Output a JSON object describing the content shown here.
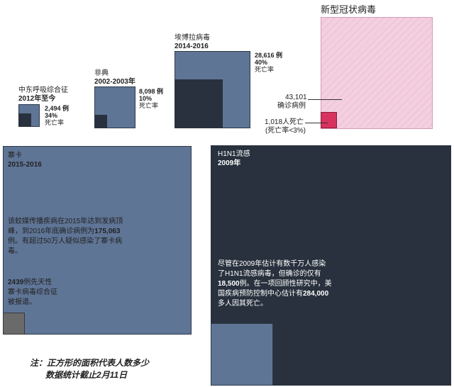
{
  "chart_data": {
    "type": "area-squares",
    "title": "",
    "items": [
      {
        "name": "中东呼吸综合征",
        "years": "2012年至今",
        "cases": "2,494 例",
        "rate": "34%",
        "rate_label": "死亡率"
      },
      {
        "name": "非典",
        "years": "2002-2003年",
        "cases": "8,098 例",
        "rate": "10%",
        "rate_label": "死亡率"
      },
      {
        "name": "埃博拉病毒",
        "years": "2014-2016",
        "cases": "28,616 例",
        "rate": "40%",
        "rate_label": "死亡率"
      },
      {
        "name": "新型冠状病毒",
        "confirmed": "43,101",
        "confirmed_label": "确诊病例",
        "deaths": "1,018人死亡",
        "death_rate": "(死亡率<3%)"
      },
      {
        "name": "寨卡",
        "years": "2015-2016",
        "description": [
          "该蚊媒传播疾病在2015年达到发病顶",
          "峰，到2016年底确诊病例为",
          "175,063",
          "例。有超过50万人疑似感染了寨卡病",
          "毒。"
        ],
        "note": [
          "2439",
          "例先天性",
          "寨卡病毒综合征",
          "被报道。"
        ]
      },
      {
        "name": "H1N1流感",
        "years": "2009年",
        "description": [
          "尽管在2009年估计有数千万人感染",
          "了H1N1流感病毒，但确诊的仅有",
          "18,500",
          "例。在一项回顾性研究中，美",
          "国疾病预防控制中心估计有",
          "284,000",
          "多人因其死亡。"
        ]
      }
    ],
    "footnote": [
      "注：正方形的面积代表人数多少",
      "数据统计截止2月11日"
    ]
  }
}
